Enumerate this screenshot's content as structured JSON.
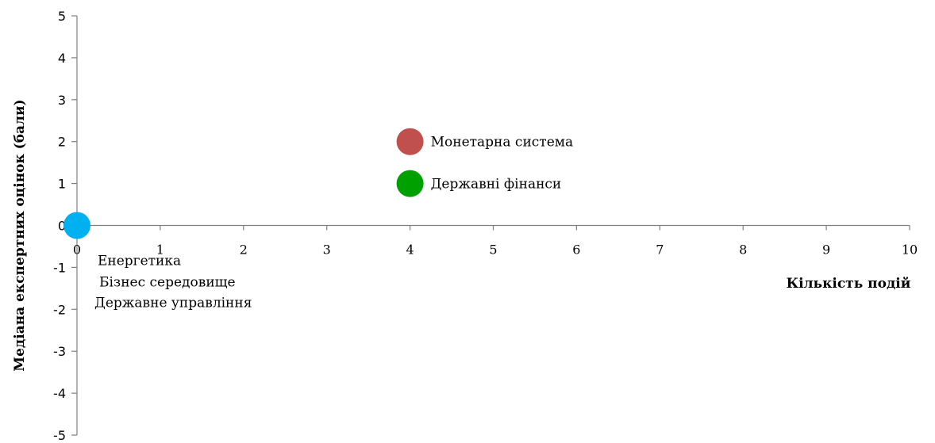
{
  "chart_data": {
    "type": "scatter",
    "xlabel": "Кількість подій",
    "ylabel": "Медіана експертних оцінок (бали)",
    "xlim": [
      0,
      10
    ],
    "ylim": [
      -5,
      5
    ],
    "x_ticks": [
      "0",
      "1",
      "2",
      "3",
      "4",
      "5",
      "6",
      "7",
      "8",
      "9",
      "10"
    ],
    "y_ticks": [
      "-5",
      "-4",
      "-3",
      "-2",
      "-1",
      "0",
      "1",
      "2",
      "3",
      "4",
      "5"
    ],
    "grid": false,
    "legend": "none",
    "points": [
      {
        "x": 4,
        "y": 2,
        "color": "#c0504d",
        "labels": [
          "Монетарна система"
        ]
      },
      {
        "x": 4,
        "y": 1,
        "color": "#00a000",
        "labels": [
          "Державні фінанси"
        ]
      },
      {
        "x": 0,
        "y": 0,
        "color": "#00b0f0",
        "labels": [
          "Енергетика",
          "Бізнес середовище",
          "Державне управління"
        ]
      }
    ]
  }
}
